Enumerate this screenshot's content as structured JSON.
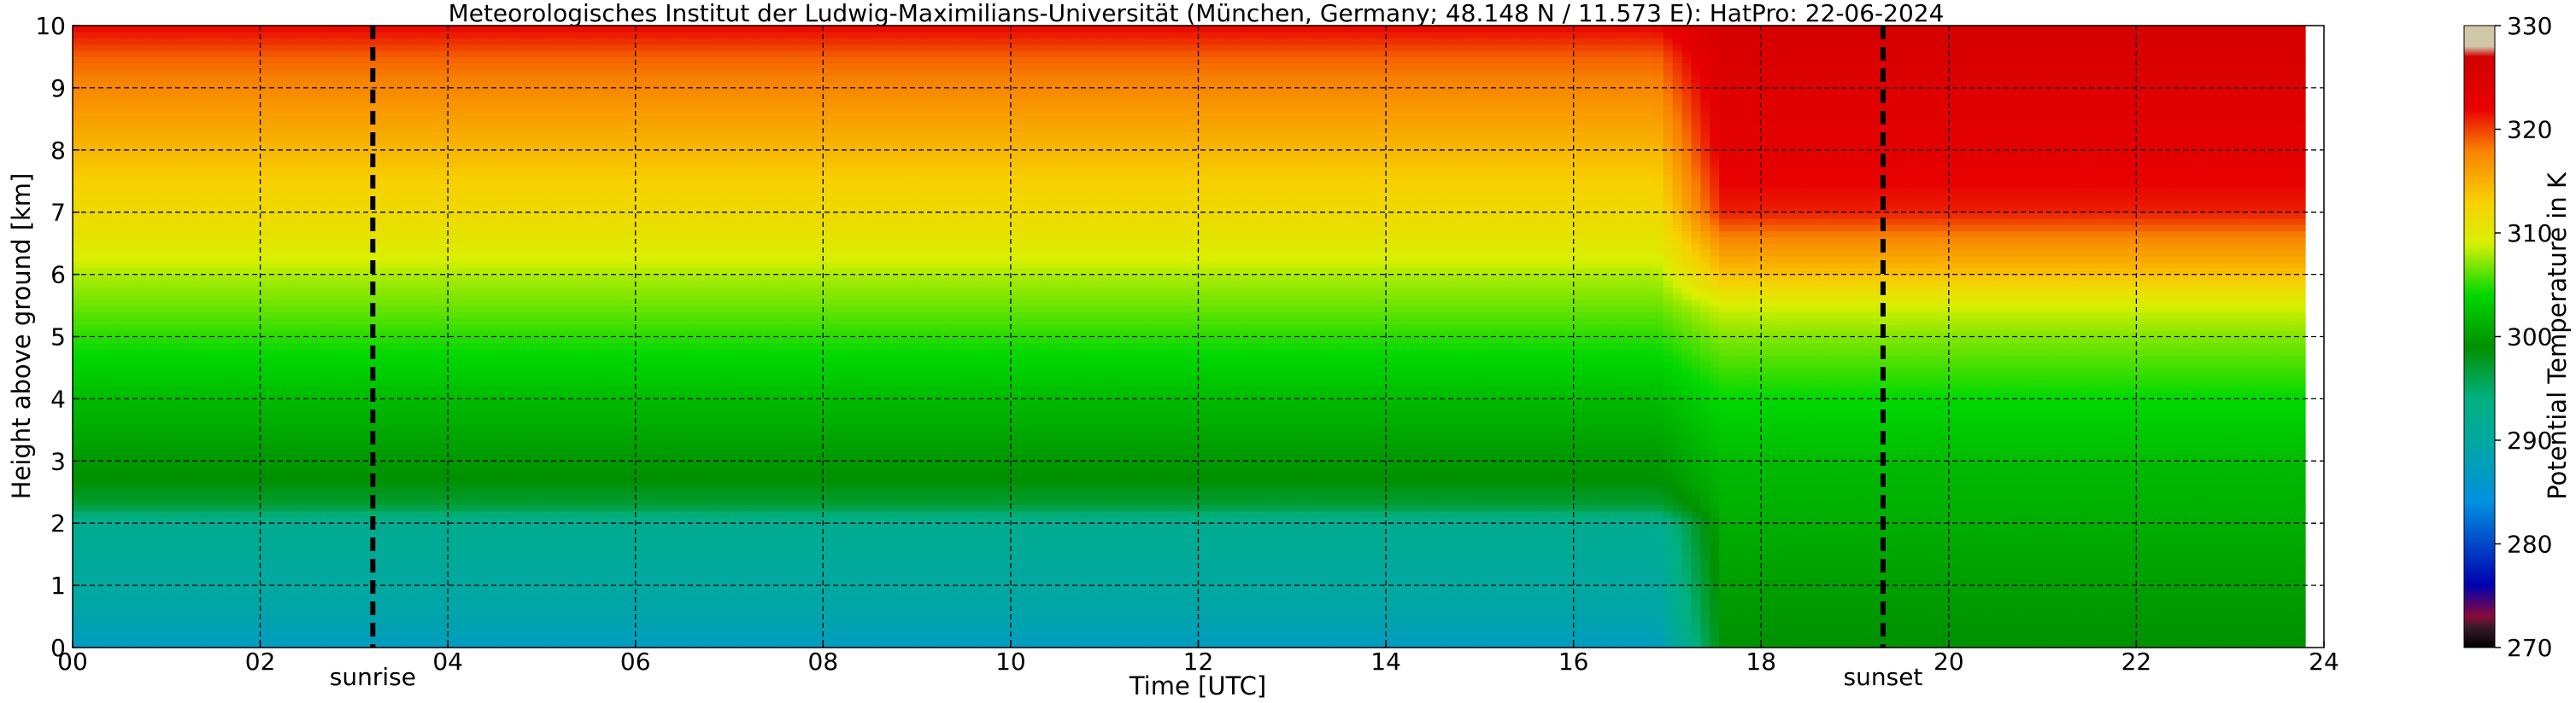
{
  "chart_data": {
    "type": "heatmap",
    "title": "Meteorologisches Institut der Ludwig-Maximilians-Universität (München, Germany; 48.148 N / 11.573 E):    HatPro: 22-06-2024",
    "xlabel": "Time [UTC]",
    "ylabel": "Height above ground [km]",
    "xlim": [
      0,
      24
    ],
    "ylim": [
      0,
      10
    ],
    "x_ticks": [
      "00",
      "02",
      "04",
      "06",
      "08",
      "10",
      "12",
      "14",
      "16",
      "18",
      "20",
      "22",
      "24"
    ],
    "y_ticks": [
      "0",
      "1",
      "2",
      "3",
      "4",
      "5",
      "6",
      "7",
      "8",
      "9",
      "10"
    ],
    "grid": true,
    "colorbar": {
      "label": "Potential Temperature in K",
      "range": [
        270,
        330
      ],
      "ticks": [
        "270",
        "280",
        "290",
        "300",
        "310",
        "320",
        "330"
      ],
      "colors": [
        {
          "value": 270,
          "color": "#000000"
        },
        {
          "value": 272,
          "color": "#3a1a2a"
        },
        {
          "value": 273,
          "color": "#8a0a3a"
        },
        {
          "value": 276,
          "color": "#0000b0"
        },
        {
          "value": 284,
          "color": "#0090e0"
        },
        {
          "value": 290,
          "color": "#00a8a0"
        },
        {
          "value": 294,
          "color": "#00b080"
        },
        {
          "value": 299,
          "color": "#009000"
        },
        {
          "value": 304,
          "color": "#00d800"
        },
        {
          "value": 309,
          "color": "#d8f000"
        },
        {
          "value": 313,
          "color": "#f8d000"
        },
        {
          "value": 318,
          "color": "#f88000"
        },
        {
          "value": 322,
          "color": "#e80000"
        },
        {
          "value": 327,
          "color": "#d00000"
        },
        {
          "value": 328,
          "color": "#d0c8a8"
        },
        {
          "value": 330,
          "color": "#d0c8a8"
        }
      ]
    },
    "markers": [
      {
        "label": "sunrise",
        "time": 3.2
      },
      {
        "label": "sunset",
        "time": 19.3
      }
    ],
    "profile_early": {
      "description_note": "",
      "heights_km": [
        0,
        0.5,
        1,
        1.5,
        2,
        2.3,
        2.7,
        3.2,
        4,
        4.7,
        5.5,
        6,
        6.7,
        7.5,
        8.5,
        9.5,
        10
      ],
      "theta_K": [
        287,
        289,
        290,
        291,
        292,
        297,
        299,
        300,
        302,
        304,
        306.5,
        308,
        311,
        313,
        316,
        319,
        322
      ]
    },
    "profile_late": {
      "heights_km": [
        0,
        1,
        2,
        3,
        4,
        4.5,
        5,
        5.5,
        6,
        6.5,
        7,
        8,
        9,
        9.5,
        10
      ],
      "theta_K": [
        299,
        300,
        301,
        302,
        304,
        305.5,
        307,
        309,
        314,
        317,
        321,
        323,
        324,
        325,
        326
      ]
    },
    "transition": {
      "start": 16.9,
      "end": 17.6
    },
    "data_end": 23.8
  }
}
